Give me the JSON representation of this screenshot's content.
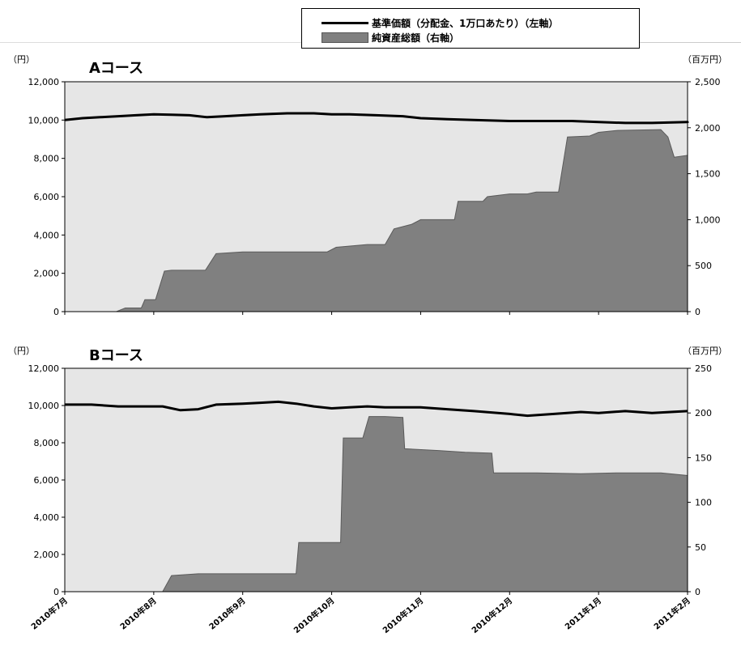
{
  "legend": {
    "line_label": "基準価額（分配金、1万口あたり）（左軸）",
    "area_label": "純資産総額（右軸）"
  },
  "colors": {
    "plot_bg": "#e6e6e6",
    "area_fill": "#808080",
    "line": "#000000"
  },
  "chart_data": [
    {
      "type": "line+area",
      "title": "Aコース",
      "left_unit": "（円）",
      "right_unit": "（百万円）",
      "ylim_left": [
        0,
        12000
      ],
      "ylim_right": [
        0,
        2500
      ],
      "yticks_left": [
        "0",
        "2,000",
        "4,000",
        "6,000",
        "8,000",
        "10,000",
        "12,000"
      ],
      "yticks_right": [
        "0",
        "500",
        "1,000",
        "1,500",
        "2,000",
        "2,500"
      ],
      "x_labels": [
        "2010年7月",
        "2010年8月",
        "2010年9月",
        "2010年10月",
        "2010年11月",
        "2010年12月",
        "2011年1月",
        "2011年2月"
      ],
      "series": [
        {
          "name": "基準価額（分配金、1万口あたり）（左軸）",
          "axis": "left",
          "kind": "line",
          "points": [
            [
              0,
              10000
            ],
            [
              0.2,
              10100
            ],
            [
              0.4,
              10150
            ],
            [
              0.6,
              10200
            ],
            [
              0.8,
              10250
            ],
            [
              1.0,
              10300
            ],
            [
              1.2,
              10280
            ],
            [
              1.4,
              10250
            ],
            [
              1.6,
              10150
            ],
            [
              1.8,
              10200
            ],
            [
              2.0,
              10250
            ],
            [
              2.2,
              10300
            ],
            [
              2.5,
              10350
            ],
            [
              2.8,
              10350
            ],
            [
              3.0,
              10300
            ],
            [
              3.2,
              10300
            ],
            [
              3.5,
              10250
            ],
            [
              3.8,
              10200
            ],
            [
              4.0,
              10100
            ],
            [
              4.3,
              10050
            ],
            [
              4.6,
              10000
            ],
            [
              5.0,
              9950
            ],
            [
              5.3,
              9950
            ],
            [
              5.7,
              9950
            ],
            [
              6.0,
              9900
            ],
            [
              6.3,
              9850
            ],
            [
              6.6,
              9850
            ],
            [
              7.0,
              9900
            ],
            [
              7.0,
              9850
            ]
          ]
        },
        {
          "name": "純資産総額（右軸）",
          "axis": "right",
          "kind": "area",
          "points": [
            [
              0,
              0
            ],
            [
              0.58,
              0
            ],
            [
              0.68,
              40
            ],
            [
              0.86,
              40
            ],
            [
              0.9,
              130
            ],
            [
              1.02,
              130
            ],
            [
              1.12,
              440
            ],
            [
              1.2,
              450
            ],
            [
              1.58,
              450
            ],
            [
              1.7,
              630
            ],
            [
              2.0,
              650
            ],
            [
              2.2,
              650
            ],
            [
              2.5,
              650
            ],
            [
              2.95,
              650
            ],
            [
              3.05,
              700
            ],
            [
              3.4,
              730
            ],
            [
              3.6,
              730
            ],
            [
              3.7,
              900
            ],
            [
              3.9,
              950
            ],
            [
              4.0,
              1000
            ],
            [
              4.38,
              1000
            ],
            [
              4.42,
              1200
            ],
            [
              4.7,
              1200
            ],
            [
              4.75,
              1250
            ],
            [
              5.0,
              1280
            ],
            [
              5.2,
              1280
            ],
            [
              5.3,
              1300
            ],
            [
              5.55,
              1300
            ],
            [
              5.65,
              1900
            ],
            [
              5.9,
              1910
            ],
            [
              6.0,
              1950
            ],
            [
              6.2,
              1970
            ],
            [
              6.7,
              1980
            ],
            [
              6.78,
              1900
            ],
            [
              6.85,
              1680
            ],
            [
              7.0,
              1700
            ]
          ]
        }
      ]
    },
    {
      "type": "line+area",
      "title": "Bコース",
      "left_unit": "（円）",
      "right_unit": "（百万円）",
      "ylim_left": [
        0,
        12000
      ],
      "ylim_right": [
        0,
        250
      ],
      "yticks_left": [
        "0",
        "2,000",
        "4,000",
        "6,000",
        "8,000",
        "10,000",
        "12,000"
      ],
      "yticks_right": [
        "0",
        "50",
        "100",
        "150",
        "200",
        "250"
      ],
      "x_labels": [
        "2010年7月",
        "2010年8月",
        "2010年9月",
        "2010年10月",
        "2010年11月",
        "2010年12月",
        "2011年1月",
        "2011年2月"
      ],
      "series": [
        {
          "name": "基準価額（分配金、1万口あたり）（左軸）",
          "axis": "left",
          "kind": "line",
          "points": [
            [
              0,
              10050
            ],
            [
              0.3,
              10050
            ],
            [
              0.6,
              9950
            ],
            [
              0.9,
              9950
            ],
            [
              1.1,
              9950
            ],
            [
              1.3,
              9750
            ],
            [
              1.5,
              9800
            ],
            [
              1.7,
              10050
            ],
            [
              2.0,
              10100
            ],
            [
              2.2,
              10150
            ],
            [
              2.4,
              10200
            ],
            [
              2.6,
              10100
            ],
            [
              2.8,
              9950
            ],
            [
              3.0,
              9850
            ],
            [
              3.2,
              9900
            ],
            [
              3.4,
              9950
            ],
            [
              3.6,
              9900
            ],
            [
              4.0,
              9900
            ],
            [
              4.3,
              9800
            ],
            [
              4.6,
              9700
            ],
            [
              5.0,
              9550
            ],
            [
              5.2,
              9450
            ],
            [
              5.5,
              9550
            ],
            [
              5.8,
              9650
            ],
            [
              6.0,
              9600
            ],
            [
              6.3,
              9700
            ],
            [
              6.6,
              9600
            ],
            [
              7.0,
              9700
            ]
          ]
        },
        {
          "name": "純資産総額（右軸）",
          "axis": "right",
          "kind": "area",
          "points": [
            [
              0,
              0
            ],
            [
              1.0,
              0
            ],
            [
              1.1,
              0
            ],
            [
              1.2,
              18
            ],
            [
              1.5,
              20
            ],
            [
              2.0,
              20
            ],
            [
              2.6,
              20
            ],
            [
              2.63,
              55
            ],
            [
              2.8,
              55
            ],
            [
              3.1,
              55
            ],
            [
              3.13,
              172
            ],
            [
              3.35,
              172
            ],
            [
              3.42,
              196
            ],
            [
              3.6,
              196
            ],
            [
              3.8,
              195
            ],
            [
              3.82,
              160
            ],
            [
              4.2,
              158
            ],
            [
              4.5,
              156
            ],
            [
              4.8,
              155
            ],
            [
              4.82,
              133
            ],
            [
              5.3,
              133
            ],
            [
              5.8,
              132
            ],
            [
              6.2,
              133
            ],
            [
              6.7,
              133
            ],
            [
              7.0,
              130
            ]
          ]
        }
      ]
    }
  ]
}
